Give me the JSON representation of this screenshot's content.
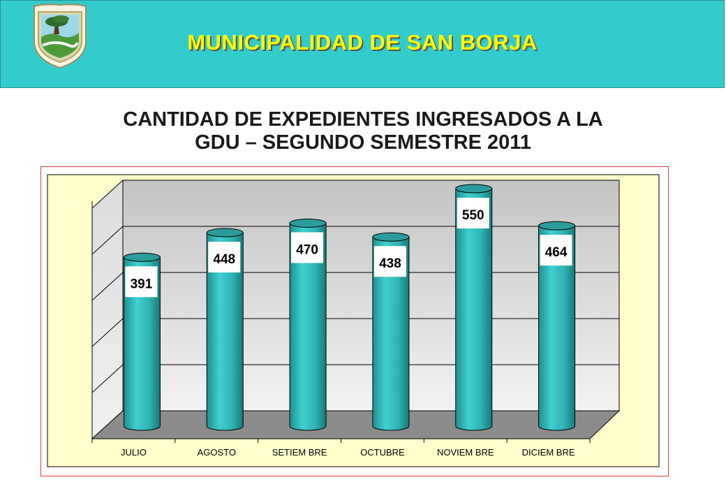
{
  "header": {
    "org_name": "MUNICIPALIDAD DE SAN BORJA",
    "logo_icon": "municipal-crest-icon"
  },
  "title_line1": "CANTIDAD DE EXPEDIENTES INGRESADOS A LA",
  "title_line2": "GDU – SEGUNDO SEMESTRE 2011",
  "colors": {
    "banner": "#33cccc",
    "banner_text": "#ffff00",
    "bar": "#33bdbd",
    "plot_bg": "#ffffcc",
    "frame_border": "#e03a3a"
  },
  "chart_data": {
    "type": "bar",
    "style": "3d-cylinder",
    "categories": [
      "JULIO",
      "AGOSTO",
      "SETIEM BRE",
      "OCTUBRE",
      "NOVIEM BRE",
      "DICIEM BRE"
    ],
    "values": [
      391,
      448,
      470,
      438,
      550,
      464
    ],
    "data_labels": [
      "391",
      "448",
      "470",
      "438",
      "550",
      "464"
    ],
    "title": "CANTIDAD DE EXPEDIENTES INGRESADOS A LA GDU – SEGUNDO SEMESTRE 2011",
    "xlabel": "",
    "ylabel": "",
    "grid": true,
    "legend": "none"
  }
}
